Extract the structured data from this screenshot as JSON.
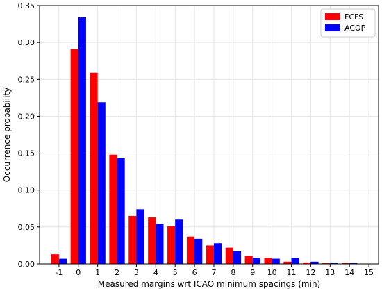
{
  "chart_data": {
    "type": "bar",
    "xlabel": "Measured margins wrt ICAO minimum spacings (min)",
    "ylabel": "Occurrence probability",
    "ylim": [
      0,
      0.35
    ],
    "xlim": [
      -2,
      15.5
    ],
    "grid": true,
    "legend_position": "top-right",
    "x_ticks": [
      -1,
      0,
      1,
      2,
      3,
      4,
      5,
      6,
      7,
      8,
      9,
      10,
      11,
      12,
      13,
      14,
      15
    ],
    "y_ticks": [
      0.0,
      0.05,
      0.1,
      0.15,
      0.2,
      0.25,
      0.3,
      0.35
    ],
    "categories": [
      -1,
      0,
      1,
      2,
      3,
      4,
      5,
      6,
      7,
      8,
      9,
      10,
      11,
      12,
      13,
      14
    ],
    "series": [
      {
        "name": "FCFS",
        "color": "#ff0000",
        "values": [
          0.013,
          0.291,
          0.259,
          0.148,
          0.065,
          0.063,
          0.051,
          0.037,
          0.025,
          0.022,
          0.011,
          0.008,
          0.003,
          0.002,
          0.001,
          0.001
        ]
      },
      {
        "name": "ACOP",
        "color": "#0000ff",
        "values": [
          0.007,
          0.334,
          0.219,
          0.143,
          0.074,
          0.054,
          0.06,
          0.034,
          0.028,
          0.017,
          0.008,
          0.007,
          0.008,
          0.003,
          0.001,
          0.001
        ]
      }
    ]
  }
}
